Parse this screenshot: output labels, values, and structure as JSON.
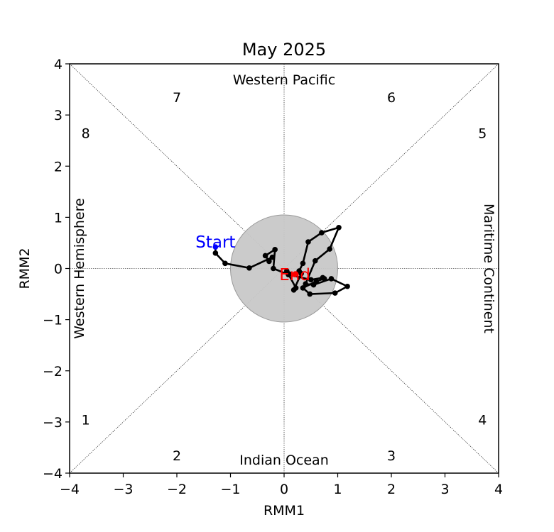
{
  "chart_data": {
    "type": "scatter",
    "title": "May 2025",
    "xlabel": "RMM1",
    "ylabel": "RMM2",
    "xlim": [
      -4,
      4
    ],
    "ylim": [
      -4,
      4
    ],
    "xticks": [
      -4,
      -3,
      -2,
      -1,
      0,
      1,
      2,
      3,
      4
    ],
    "yticks": [
      -4,
      -3,
      -2,
      -1,
      0,
      1,
      2,
      3,
      4
    ],
    "regions": {
      "top": "Western Pacific",
      "bottom": "Indian Ocean",
      "left": "Western Hemisphere",
      "right": "Maritime Continent"
    },
    "phases": [
      {
        "label": "1",
        "x": -3.7,
        "y": -2.95
      },
      {
        "label": "2",
        "x": -2.0,
        "y": -3.65
      },
      {
        "label": "3",
        "x": 2.0,
        "y": -3.65
      },
      {
        "label": "4",
        "x": 3.7,
        "y": -2.95
      },
      {
        "label": "5",
        "x": 3.7,
        "y": 2.65
      },
      {
        "label": "6",
        "x": 2.0,
        "y": 3.35
      },
      {
        "label": "7",
        "x": -2.0,
        "y": 3.35
      },
      {
        "label": "8",
        "x": -3.7,
        "y": 2.65
      }
    ],
    "circle_radius": 1,
    "start_label": "Start",
    "end_label": "End",
    "start_color": "#0000ff",
    "end_color": "#ff0000",
    "line_color": "#000000",
    "circle_color": "#c8c8c8",
    "series": [
      {
        "x": [
          -1.28,
          -1.28,
          -1.1,
          -0.65,
          -0.22,
          -0.28,
          -0.35,
          -0.17,
          -0.2,
          0.08,
          0.5,
          0.72,
          0.75,
          0.6,
          0.35,
          0.48,
          0.95,
          1.18,
          0.88,
          0.55,
          0.4,
          0.58,
          0.85,
          1.02,
          0.7,
          0.45,
          0.35,
          0.28,
          0.32,
          0.18,
          0.22,
          0.05,
          0.2
        ],
        "y": [
          0.42,
          0.3,
          0.1,
          0.01,
          0.22,
          0.14,
          0.25,
          0.37,
          0.0,
          -0.12,
          -0.22,
          -0.18,
          -0.2,
          -0.25,
          -0.38,
          -0.5,
          -0.48,
          -0.35,
          -0.2,
          -0.32,
          -0.3,
          0.15,
          0.38,
          0.8,
          0.7,
          0.52,
          0.1,
          -0.05,
          -0.1,
          -0.42,
          -0.38,
          -0.05,
          -0.12
        ]
      }
    ]
  }
}
